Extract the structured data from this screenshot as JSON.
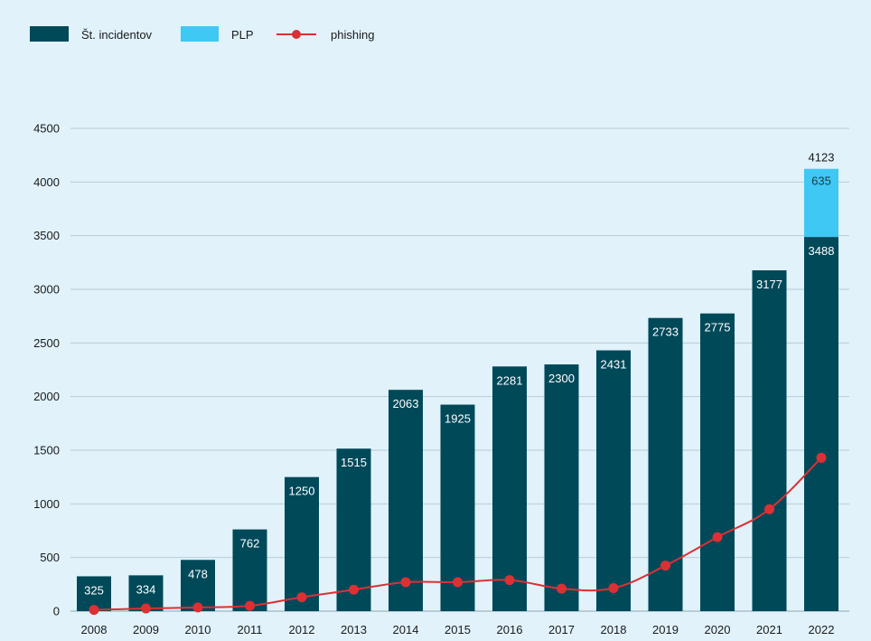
{
  "legend": [
    {
      "label": "Št. incidentov",
      "kind": "bar",
      "color": "#004959"
    },
    {
      "label": "PLP",
      "kind": "bar",
      "color": "#3fc8f4"
    },
    {
      "label": "phishing",
      "kind": "line-marker",
      "color": "#dc3035"
    }
  ],
  "chart_data": {
    "type": "bar",
    "categories": [
      "2008",
      "2009",
      "2010",
      "2011",
      "2012",
      "2013",
      "2014",
      "2015",
      "2016",
      "2017",
      "2018",
      "2019",
      "2020",
      "2021",
      "2022"
    ],
    "series": [
      {
        "name": "Št. incidentov",
        "type": "bar",
        "color": "#004959",
        "values": [
          325,
          334,
          478,
          762,
          1250,
          1515,
          2063,
          1925,
          2281,
          2300,
          2431,
          2733,
          2775,
          3177,
          3488
        ]
      },
      {
        "name": "PLP",
        "type": "bar-stacked",
        "color": "#3fc8f4",
        "values": [
          0,
          0,
          0,
          0,
          0,
          0,
          0,
          0,
          0,
          0,
          0,
          0,
          0,
          0,
          635
        ]
      },
      {
        "name": "phishing",
        "type": "line",
        "color": "#dc3035",
        "values": [
          12,
          25,
          35,
          50,
          130,
          200,
          270,
          270,
          290,
          210,
          215,
          425,
          690,
          950,
          1430
        ]
      }
    ],
    "bar_labels": [
      "325",
      "334",
      "478",
      "762",
      "1250",
      "1515",
      "2063",
      "1925",
      "2281",
      "2300",
      "2431",
      "2733",
      "2775",
      "3177",
      "3488"
    ],
    "stack_labels": {
      "14": "635"
    },
    "total_labels": {
      "14": "4123"
    },
    "yticks": [
      "0",
      "500",
      "1000",
      "1500",
      "2000",
      "2500",
      "3000",
      "3500",
      "4000",
      "4500"
    ],
    "ylim": [
      0,
      4500
    ],
    "grid": true,
    "legend_position": "top-left"
  }
}
